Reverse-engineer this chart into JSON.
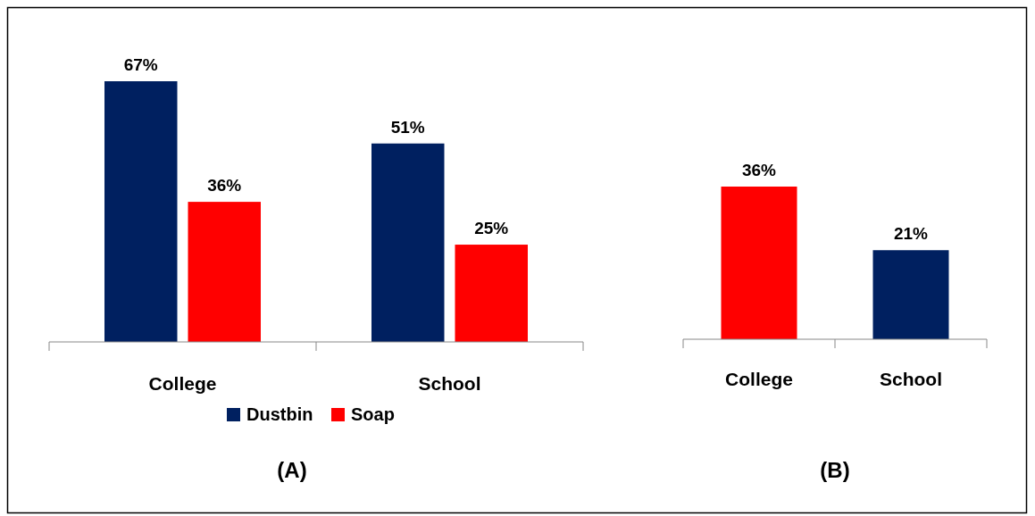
{
  "chart_data": [
    {
      "type": "bar",
      "title": "(A)",
      "categories": [
        "College",
        "School"
      ],
      "legend": "bottom",
      "series": [
        {
          "name": "Dustbin",
          "color": "#002060",
          "values": [
            67,
            51
          ],
          "value_labels": [
            "67%",
            "51%"
          ]
        },
        {
          "name": "Soap",
          "color": "#ff0000",
          "values": [
            36,
            25
          ],
          "value_labels": [
            "36%",
            "25%"
          ]
        }
      ]
    },
    {
      "type": "bar",
      "title": "(B)",
      "categories": [
        "College",
        "School"
      ],
      "values": [
        36,
        21
      ],
      "colors": [
        "#ff0000",
        "#002060"
      ],
      "value_labels": [
        "36%",
        "21%"
      ]
    }
  ]
}
